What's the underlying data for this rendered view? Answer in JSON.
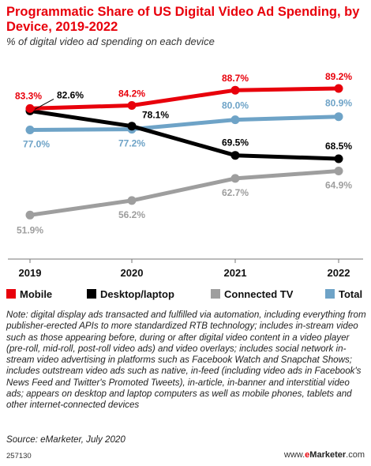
{
  "header": {
    "title": "Programmatic Share of US Digital Video Ad Spending, by Device, 2019-2022",
    "subtitle": "% of digital video ad spending on each device"
  },
  "chart_data": {
    "type": "line",
    "x": [
      "2019",
      "2020",
      "2021",
      "2022"
    ],
    "ylim": [
      45,
      92
    ],
    "grid": false,
    "legend_position": "bottom",
    "series": [
      {
        "name": "Mobile",
        "color": "#e8000b",
        "values": [
          83.3,
          84.2,
          88.7,
          89.2
        ],
        "labels": [
          "83.3%",
          "84.2%",
          "88.7%",
          "89.2%"
        ]
      },
      {
        "name": "Desktop/laptop",
        "color": "#000000",
        "values": [
          82.6,
          78.1,
          69.5,
          68.5
        ],
        "labels": [
          "82.6%",
          "78.1%",
          "69.5%",
          "68.5%"
        ]
      },
      {
        "name": "Connected TV",
        "color": "#9e9e9e",
        "values": [
          51.9,
          56.2,
          62.7,
          64.9
        ],
        "labels": [
          "51.9%",
          "56.2%",
          "62.7%",
          "64.9%"
        ]
      },
      {
        "name": "Total",
        "color": "#6ea3c7",
        "values": [
          77.0,
          77.2,
          80.0,
          80.9
        ],
        "labels": [
          "77.0%",
          "77.2%",
          "80.0%",
          "80.9%"
        ]
      }
    ]
  },
  "note": "Note: digital display ads transacted and fulfilled via automation, including everything from publisher-erected APIs to more standardized RTB technology; includes in-stream video such as those appearing before, during or after digital video content in a video player (pre-roll, mid-roll, post-roll video ads) and video overlays; includes social network in-stream video advertising in platforms such as Facebook Watch and Snapchat Shows; includes outstream video ads such as native, in-feed (including video ads in Facebook's News Feed and Twitter's Promoted Tweets), in-article, in-banner and interstitial video ads; appears on desktop and laptop computers as well as mobile phones, tablets and other internet-connected devices",
  "source": "Source: eMarketer, July 2020",
  "footer": {
    "chart_id": "257130",
    "brand_prefix": "www.",
    "brand_e": "e",
    "brand_main": "Marketer",
    "brand_suffix": ".com"
  }
}
